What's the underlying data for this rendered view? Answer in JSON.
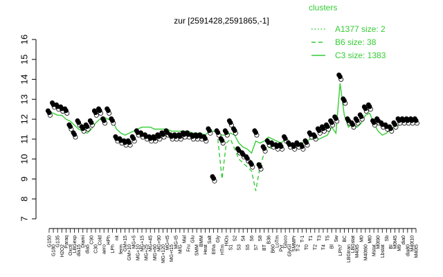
{
  "chart_data": {
    "type": "line",
    "title": "zur [2591428,2591865,-1]",
    "xlabel": "",
    "ylabel": "",
    "ylim": [
      7,
      16
    ],
    "y_ticks": [
      7,
      8,
      9,
      10,
      11,
      12,
      13,
      14,
      15,
      16
    ],
    "grid": false,
    "legend": {
      "title": "clusters",
      "placement": "top-right",
      "color": "#33cc33",
      "entries": [
        {
          "label": "A1377 size: 2",
          "style": "dotted"
        },
        {
          "label": "B6 size: 38",
          "style": "dashed"
        },
        {
          "label": "C3 size: 1383",
          "style": "solid"
        }
      ]
    },
    "colors": {
      "series": "#33cc33",
      "points": "#000000",
      "point_fill": "#ffffff",
      "axis": "#000000"
    },
    "x_tick_labels": [
      "G150",
      "G180",
      "G135",
      "H2O2",
      "Paraq",
      "Oxctl",
      "LBGexp",
      "dia15",
      "Diami",
      "dia5",
      "C90",
      "C30",
      "Cold",
      "aero",
      "HPh",
      "LPh",
      "nit",
      "ferm",
      "GM+15",
      "GM+10",
      "MG+5",
      "MG+10",
      "MG+15",
      "MG+25",
      "MG+45",
      "MG+60",
      "MG+90",
      "MG+120",
      "MG+t5",
      "MG+t15",
      "MG-t5",
      "M/G",
      "Mal",
      "Fru",
      "Glu",
      "SMM",
      "BMM",
      "Heat",
      "Salt",
      "Etha",
      "Gly",
      "HTm",
      "HiOs",
      "S1",
      "S2",
      "S3",
      "S4",
      "S5",
      "S6",
      "S7",
      "S8",
      "BT",
      "B36",
      "B60",
      "LoTm",
      "Pyr",
      "Gluco",
      "GlyGl",
      "SMMPr",
      "T-2",
      "T-1",
      "T0",
      "T1",
      "T2",
      "T3",
      "T4",
      "T5",
      "Bl",
      "Sw",
      "LPh7",
      "BC",
      "LBGtran",
      "LBGstat",
      "M40t5",
      "M0",
      "M40t60",
      "Mt0",
      "Mstat",
      "M0t90",
      "Lbstat",
      "Sb",
      "BI",
      "M0t45",
      "M9",
      "dia0",
      "dia80",
      "M40t10",
      "M40t5"
    ],
    "series": [
      {
        "style": "solid",
        "x_index": [
          0,
          1,
          2,
          3,
          4,
          5,
          6,
          7,
          8,
          9,
          10,
          11,
          12,
          13,
          14,
          15,
          16,
          17,
          18,
          19,
          20,
          21,
          22,
          23,
          24,
          25,
          26,
          27,
          28,
          29,
          30,
          31,
          32,
          33,
          34,
          35,
          36,
          37,
          38,
          39,
          40,
          41,
          42,
          43,
          44,
          45,
          46,
          47,
          48,
          49,
          50,
          51,
          52,
          53,
          54,
          55,
          56,
          57,
          58,
          59,
          60,
          61,
          62,
          63,
          64,
          65,
          66,
          67,
          68,
          69,
          70,
          71,
          72,
          73,
          74,
          75,
          76,
          77,
          78,
          79,
          80,
          81,
          82,
          83,
          84,
          85,
          86,
          87
        ],
        "values": [
          12.4,
          12.3,
          12.2,
          12.2,
          12.0,
          11.9,
          11.7,
          11.5,
          11.4,
          11.3,
          11.5,
          11.8,
          12.0,
          12.1,
          12.0,
          11.9,
          11.5,
          11.3,
          11.2,
          11.3,
          11.4,
          11.5,
          11.6,
          11.6,
          11.6,
          11.5,
          11.5,
          11.5,
          11.5,
          11.4,
          11.4,
          11.4,
          11.4,
          11.4,
          11.3,
          11.3,
          11.3,
          11.2,
          11.4,
          11.4,
          11.3,
          11.2,
          11.2,
          11.3,
          11.2,
          10.8,
          10.6,
          10.5,
          10.3,
          10.9,
          10.8,
          10.9,
          11.1,
          11.0,
          10.9,
          10.8,
          11.0,
          10.8,
          10.7,
          10.8,
          10.8,
          10.9,
          11.0,
          11.0,
          11.0,
          11.1,
          11.2,
          11.6,
          11.3,
          13.8,
          12.2,
          11.6,
          11.8,
          11.6,
          11.8,
          12.2,
          12.3,
          11.8,
          11.4,
          11.2,
          11.3,
          11.5,
          11.6,
          11.7,
          11.8,
          11.8,
          11.8,
          11.8
        ]
      },
      {
        "style": "dashed",
        "x_index": [
          40,
          41,
          42,
          43,
          44,
          45,
          46,
          47,
          48,
          49,
          50,
          51,
          52,
          53
        ],
        "values": [
          11.0,
          9.0,
          10.8,
          11.0,
          10.5,
          10.0,
          9.8,
          9.6,
          9.4,
          8.4,
          9.6,
          10.3,
          10.6,
          10.5
        ]
      }
    ],
    "points": {
      "x_index": [
        0,
        1,
        2,
        3,
        4,
        5,
        6,
        7,
        8,
        9,
        10,
        11,
        12,
        13,
        14,
        15,
        16,
        17,
        18,
        19,
        20,
        21,
        22,
        23,
        24,
        25,
        26,
        27,
        28,
        29,
        30,
        31,
        32,
        33,
        34,
        35,
        36,
        37,
        38,
        39,
        40,
        41,
        42,
        43,
        44,
        45,
        46,
        47,
        48,
        49,
        50,
        51,
        52,
        53,
        54,
        55,
        56,
        57,
        58,
        59,
        60,
        61,
        62,
        63,
        64,
        65,
        66,
        67,
        68,
        69,
        70,
        71,
        72,
        73,
        74,
        75,
        76,
        77,
        78,
        79,
        80,
        81,
        82,
        83,
        84,
        85,
        86,
        87
      ],
      "values": [
        12.3,
        12.7,
        12.6,
        12.5,
        12.4,
        11.6,
        11.2,
        11.8,
        11.5,
        11.6,
        11.8,
        12.3,
        12.4,
        11.9,
        12.4,
        11.9,
        11.0,
        10.9,
        10.8,
        10.8,
        11.0,
        11.3,
        11.2,
        11.1,
        11.0,
        11.0,
        11.1,
        11.2,
        11.3,
        11.1,
        11.1,
        11.1,
        11.2,
        11.2,
        11.1,
        11.1,
        11.1,
        11.0,
        11.4,
        9.0,
        11.3,
        10.9,
        11.3,
        11.8,
        11.4,
        10.4,
        10.2,
        10.0,
        9.7,
        11.3,
        9.6,
        10.5,
        10.8,
        10.7,
        10.6,
        10.6,
        11.0,
        10.7,
        10.6,
        10.7,
        10.6,
        10.8,
        11.2,
        11.1,
        11.4,
        11.5,
        11.6,
        11.8,
        12.0,
        14.1,
        12.9,
        11.9,
        11.7,
        11.9,
        12.1,
        12.5,
        12.6,
        11.8,
        11.9,
        11.7,
        11.6,
        11.5,
        11.7,
        11.9,
        11.9,
        11.9,
        11.9,
        11.9
      ]
    }
  }
}
